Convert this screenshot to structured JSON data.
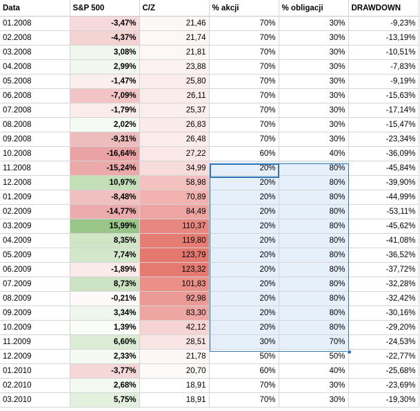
{
  "headers": [
    "Data",
    "S&P 500",
    "C/Z",
    "% akcji",
    "% obligacji",
    "DRAWDOWN"
  ],
  "rows": [
    {
      "date": "01.2008",
      "sp500": "-3,47%",
      "cz": "21,46",
      "akcji": "70%",
      "obligacji": "30%",
      "drawdown": "-9,23%",
      "sp_color": "#f7dadb",
      "cz_color": "#fdf8f8"
    },
    {
      "date": "02.2008",
      "sp500": "-4,37%",
      "cz": "21,74",
      "akcji": "70%",
      "obligacji": "30%",
      "drawdown": "-13,19%",
      "sp_color": "#f5d3d3",
      "cz_color": "#fdf7f7"
    },
    {
      "date": "03.2008",
      "sp500": "3,08%",
      "cz": "21,81",
      "akcji": "70%",
      "obligacji": "30%",
      "drawdown": "-10,51%",
      "sp_color": "#f1f7ef",
      "cz_color": "#fdf7f7"
    },
    {
      "date": "04.2008",
      "sp500": "2,99%",
      "cz": "23,88",
      "akcji": "70%",
      "obligacji": "30%",
      "drawdown": "-7,83%",
      "sp_color": "#f2f8f0",
      "cz_color": "#fcf2f2"
    },
    {
      "date": "05.2008",
      "sp500": "-1,47%",
      "cz": "25,80",
      "akcji": "70%",
      "obligacji": "30%",
      "drawdown": "-9,19%",
      "sp_color": "#fbeeee",
      "cz_color": "#fbeded"
    },
    {
      "date": "06.2008",
      "sp500": "-7,09%",
      "cz": "26,11",
      "akcji": "70%",
      "obligacji": "30%",
      "drawdown": "-15,63%",
      "sp_color": "#f2c4c5",
      "cz_color": "#fbecec"
    },
    {
      "date": "07.2008",
      "sp500": "-1,79%",
      "cz": "25,37",
      "akcji": "70%",
      "obligacji": "30%",
      "drawdown": "-17,14%",
      "sp_color": "#fbecec",
      "cz_color": "#fbeeee"
    },
    {
      "date": "08.2008",
      "sp500": "2,02%",
      "cz": "26,83",
      "akcji": "70%",
      "obligacji": "30%",
      "drawdown": "-15,47%",
      "sp_color": "#f6faf4",
      "cz_color": "#fbeaea"
    },
    {
      "date": "09.2008",
      "sp500": "-9,31%",
      "cz": "26,48",
      "akcji": "70%",
      "obligacji": "30%",
      "drawdown": "-23,34%",
      "sp_color": "#efbcbd",
      "cz_color": "#fbebeb"
    },
    {
      "date": "10.2008",
      "sp500": "-16,64%",
      "cz": "27,22",
      "akcji": "60%",
      "obligacji": "40%",
      "drawdown": "-36,09%",
      "sp_color": "#eaa3a4",
      "cz_color": "#fae8e8"
    },
    {
      "date": "11.2008",
      "sp500": "-15,24%",
      "cz": "34,99",
      "akcji": "20%",
      "obligacji": "80%",
      "drawdown": "-45,84%",
      "sp_color": "#eba9aa",
      "cz_color": "#f8dcdc"
    },
    {
      "date": "12.2008",
      "sp500": "10,97%",
      "cz": "58,98",
      "akcji": "20%",
      "obligacji": "80%",
      "drawdown": "-39,90%",
      "sp_color": "#c3dfb8",
      "cz_color": "#f3c1c0"
    },
    {
      "date": "01.2009",
      "sp500": "-8,48%",
      "cz": "70,89",
      "akcji": "20%",
      "obligacji": "80%",
      "drawdown": "-44,99%",
      "sp_color": "#f0c0c1",
      "cz_color": "#f1b2b0"
    },
    {
      "date": "02.2009",
      "sp500": "-14,77%",
      "cz": "84,49",
      "akcji": "20%",
      "obligacji": "80%",
      "drawdown": "-53,11%",
      "sp_color": "#ecabac",
      "cz_color": "#eea5a2"
    },
    {
      "date": "03.2009",
      "sp500": "15,99%",
      "cz": "110,37",
      "akcji": "20%",
      "obligacji": "80%",
      "drawdown": "-45,62%",
      "sp_color": "#98c689",
      "cz_color": "#e8877f"
    },
    {
      "date": "04.2009",
      "sp500": "8,35%",
      "cz": "119,80",
      "akcji": "20%",
      "obligacji": "80%",
      "drawdown": "-41,08%",
      "sp_color": "#cfe5c6",
      "cz_color": "#e67d74"
    },
    {
      "date": "05.2009",
      "sp500": "7,74%",
      "cz": "123,79",
      "akcji": "20%",
      "obligacji": "80%",
      "drawdown": "-36,52%",
      "sp_color": "#d3e7cb",
      "cz_color": "#e5786e"
    },
    {
      "date": "06.2009",
      "sp500": "-1,89%",
      "cz": "123,32",
      "akcji": "20%",
      "obligacji": "80%",
      "drawdown": "-37,72%",
      "sp_color": "#faeaea",
      "cz_color": "#e57a70"
    },
    {
      "date": "07.2009",
      "sp500": "8,73%",
      "cz": "101,83",
      "akcji": "20%",
      "obligacji": "80%",
      "drawdown": "-32,28%",
      "sp_color": "#cbe3c2",
      "cz_color": "#ea9089"
    },
    {
      "date": "08.2009",
      "sp500": "-0,21%",
      "cz": "92,98",
      "akcji": "20%",
      "obligacji": "80%",
      "drawdown": "-32,42%",
      "sp_color": "#fdf9f9",
      "cz_color": "#ec9a95"
    },
    {
      "date": "09.2009",
      "sp500": "3,34%",
      "cz": "83,30",
      "akcji": "20%",
      "obligacji": "80%",
      "drawdown": "-30,16%",
      "sp_color": "#eff6ed",
      "cz_color": "#eea6a3"
    },
    {
      "date": "10.2009",
      "sp500": "1,39%",
      "cz": "42,12",
      "akcji": "20%",
      "obligacji": "80%",
      "drawdown": "-29,20%",
      "sp_color": "#f9fcf8",
      "cz_color": "#f6d4d3"
    },
    {
      "date": "11.2009",
      "sp500": "6,60%",
      "cz": "28,51",
      "akcji": "30%",
      "obligacji": "70%",
      "drawdown": "-24,53%",
      "sp_color": "#dbecd4",
      "cz_color": "#fae5e5"
    },
    {
      "date": "12.2009",
      "sp500": "2,33%",
      "cz": "21,78",
      "akcji": "50%",
      "obligacji": "50%",
      "drawdown": "-22,77%",
      "sp_color": "#f4f9f2",
      "cz_color": "#fdf7f7"
    },
    {
      "date": "01.2010",
      "sp500": "-3,77%",
      "cz": "20,70",
      "akcji": "60%",
      "obligacji": "40%",
      "drawdown": "-25,68%",
      "sp_color": "#f6d7d8",
      "cz_color": "#fdfafa"
    },
    {
      "date": "02.2010",
      "sp500": "2,68%",
      "cz": "18,91",
      "akcji": "70%",
      "obligacji": "30%",
      "drawdown": "-23,69%",
      "sp_color": "#f3f8f1",
      "cz_color": "#ffffff"
    },
    {
      "date": "03.2010",
      "sp500": "5,75%",
      "cz": "18,91",
      "akcji": "70%",
      "obligacji": "30%",
      "drawdown": "-19,30%",
      "sp_color": "#e3f0dd",
      "cz_color": "#ffffff"
    }
  ],
  "selection": {
    "start_row": 10,
    "end_row": 22,
    "columns": [
      "akcji",
      "obligacji"
    ],
    "color": "#2e75b6",
    "fill": "#e6f0fb"
  }
}
